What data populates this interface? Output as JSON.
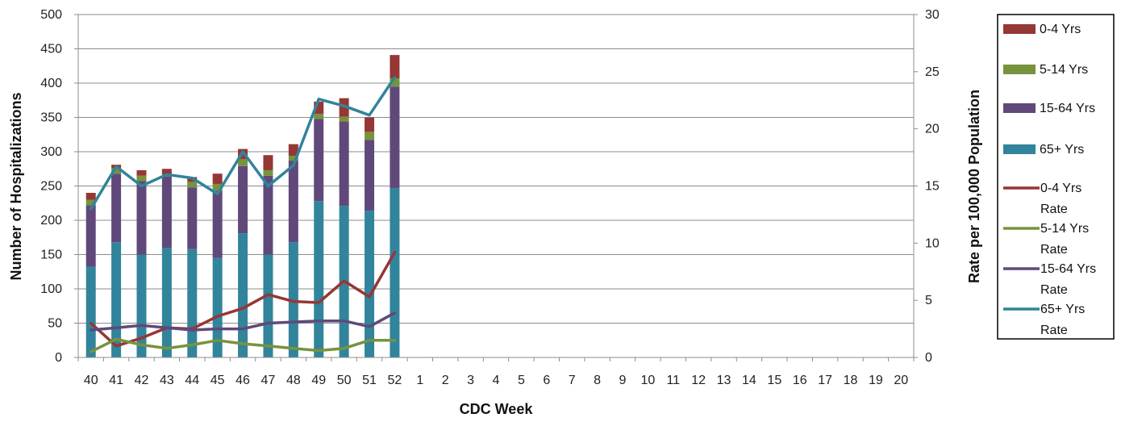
{
  "chart_data": {
    "type": "bar",
    "stacked": true,
    "categories": [
      "40",
      "41",
      "42",
      "43",
      "44",
      "45",
      "46",
      "47",
      "48",
      "49",
      "50",
      "51",
      "52",
      "1",
      "2",
      "3",
      "4",
      "5",
      "6",
      "7",
      "8",
      "9",
      "10",
      "11",
      "12",
      "13",
      "14",
      "15",
      "16",
      "17",
      "18",
      "19",
      "20"
    ],
    "xlabel": "CDC Week",
    "ylabel": "Number of Hospitalizations",
    "y2label": "Rate per 100,000 Population",
    "ylim": [
      0,
      500
    ],
    "y2lim": [
      0,
      30
    ],
    "yticks": [
      0,
      50,
      100,
      150,
      200,
      250,
      300,
      350,
      400,
      450,
      500
    ],
    "y2ticks": [
      0,
      5,
      10,
      15,
      20,
      25,
      30
    ],
    "grid": true,
    "legend_position": "right",
    "bar_series": [
      {
        "name": "65+ Yrs",
        "color": "#31849B",
        "values": [
          132,
          168,
          150,
          160,
          158,
          145,
          181,
          150,
          168,
          228,
          221,
          214,
          247
        ]
      },
      {
        "name": "15-64 Yrs",
        "color": "#60497A",
        "values": [
          90,
          100,
          107,
          104,
          90,
          98,
          98,
          115,
          119,
          120,
          123,
          103,
          148
        ]
      },
      {
        "name": "5-14 Yrs",
        "color": "#77933C",
        "values": [
          8,
          8,
          8,
          3,
          8,
          10,
          10,
          8,
          7,
          7,
          7,
          12,
          12
        ]
      },
      {
        "name": "0-4 Yrs",
        "color": "#953735",
        "values": [
          10,
          5,
          8,
          8,
          7,
          15,
          15,
          22,
          17,
          18,
          27,
          21,
          34
        ]
      }
    ],
    "line_series": [
      {
        "name": "0-4 Yrs Rate",
        "color": "#953735",
        "values": [
          3.0,
          1.0,
          1.7,
          2.6,
          2.5,
          3.6,
          4.3,
          5.5,
          4.9,
          4.8,
          6.7,
          5.3,
          9.2
        ]
      },
      {
        "name": "5-14 Yrs Rate",
        "color": "#77933C",
        "values": [
          0.5,
          1.6,
          1.1,
          0.8,
          1.1,
          1.5,
          1.2,
          1.0,
          0.8,
          0.6,
          0.8,
          1.5,
          1.5
        ]
      },
      {
        "name": "15-64 Yrs Rate",
        "color": "#60497A",
        "values": [
          2.4,
          2.6,
          2.8,
          2.6,
          2.4,
          2.5,
          2.5,
          3.0,
          3.1,
          3.2,
          3.2,
          2.7,
          3.9
        ]
      },
      {
        "name": "65+ Yrs Rate",
        "color": "#31849B",
        "values": [
          13.0,
          16.7,
          15.0,
          16.0,
          15.7,
          14.3,
          18.0,
          15.0,
          16.8,
          22.6,
          22.0,
          21.2,
          24.5
        ]
      }
    ],
    "legend": [
      {
        "kind": "bar",
        "label": "0-4 Yrs",
        "color": "#953735"
      },
      {
        "kind": "bar",
        "label": "5-14 Yrs",
        "color": "#77933C"
      },
      {
        "kind": "bar",
        "label": "15-64 Yrs",
        "color": "#60497A"
      },
      {
        "kind": "bar",
        "label": "65+ Yrs",
        "color": "#31849B"
      },
      {
        "kind": "line",
        "label": "0-4 Yrs",
        "label2": "Rate",
        "color": "#953735"
      },
      {
        "kind": "line",
        "label": "5-14 Yrs",
        "label2": "Rate",
        "color": "#77933C"
      },
      {
        "kind": "line",
        "label": "15-64 Yrs",
        "label2": "Rate",
        "color": "#60497A"
      },
      {
        "kind": "line",
        "label": "65+ Yrs",
        "label2": "Rate",
        "color": "#31849B"
      }
    ]
  }
}
